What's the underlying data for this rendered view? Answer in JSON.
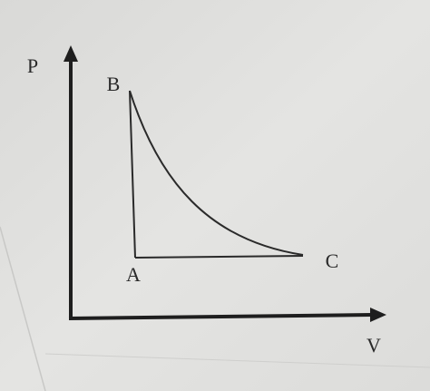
{
  "axes": {
    "y_label": "P",
    "x_label": "V"
  },
  "points": [
    {
      "label": "A"
    },
    {
      "label": "B"
    },
    {
      "label": "C"
    }
  ]
}
